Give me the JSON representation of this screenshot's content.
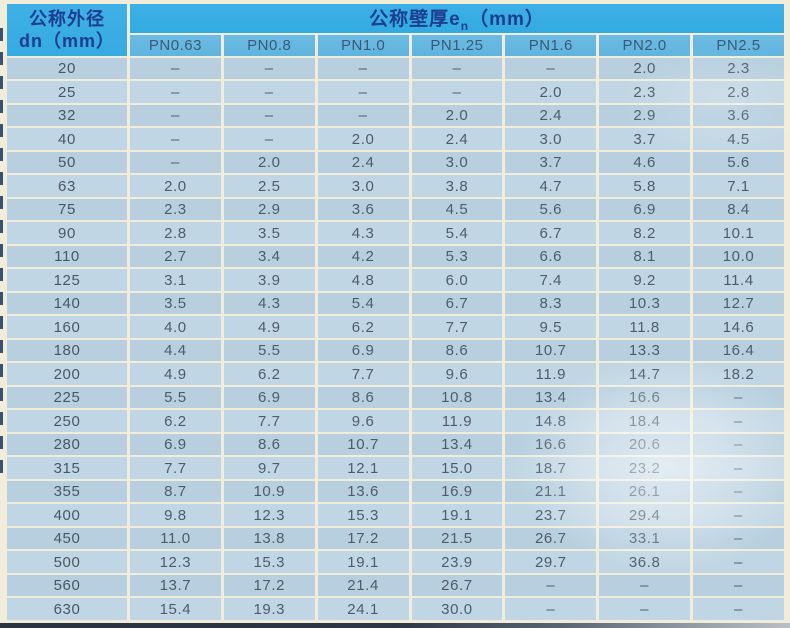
{
  "table": {
    "col1_header_line1": "公称外径",
    "col1_header_line2": "dn（mm）",
    "group_header_pre": "公称壁厚e",
    "group_header_sub": "n",
    "group_header_post": "（mm）",
    "pn_headers": [
      "PN0.63",
      "PN0.8",
      "PN1.0",
      "PN1.25",
      "PN1.6",
      "PN2.0",
      "PN2.5"
    ],
    "rows": [
      {
        "dn": "20",
        "values": [
          "–",
          "–",
          "–",
          "–",
          "–",
          "2.0",
          "2.3"
        ]
      },
      {
        "dn": "25",
        "values": [
          "–",
          "–",
          "–",
          "–",
          "2.0",
          "2.3",
          "2.8"
        ]
      },
      {
        "dn": "32",
        "values": [
          "–",
          "–",
          "–",
          "2.0",
          "2.4",
          "2.9",
          "3.6"
        ]
      },
      {
        "dn": "40",
        "values": [
          "–",
          "–",
          "2.0",
          "2.4",
          "3.0",
          "3.7",
          "4.5"
        ]
      },
      {
        "dn": "50",
        "values": [
          "–",
          "2.0",
          "2.4",
          "3.0",
          "3.7",
          "4.6",
          "5.6"
        ]
      },
      {
        "dn": "63",
        "values": [
          "2.0",
          "2.5",
          "3.0",
          "3.8",
          "4.7",
          "5.8",
          "7.1"
        ]
      },
      {
        "dn": "75",
        "values": [
          "2.3",
          "2.9",
          "3.6",
          "4.5",
          "5.6",
          "6.9",
          "8.4"
        ]
      },
      {
        "dn": "90",
        "values": [
          "2.8",
          "3.5",
          "4.3",
          "5.4",
          "6.7",
          "8.2",
          "10.1"
        ]
      },
      {
        "dn": "110",
        "values": [
          "2.7",
          "3.4",
          "4.2",
          "5.3",
          "6.6",
          "8.1",
          "10.0"
        ]
      },
      {
        "dn": "125",
        "values": [
          "3.1",
          "3.9",
          "4.8",
          "6.0",
          "7.4",
          "9.2",
          "11.4"
        ]
      },
      {
        "dn": "140",
        "values": [
          "3.5",
          "4.3",
          "5.4",
          "6.7",
          "8.3",
          "10.3",
          "12.7"
        ]
      },
      {
        "dn": "160",
        "values": [
          "4.0",
          "4.9",
          "6.2",
          "7.7",
          "9.5",
          "11.8",
          "14.6"
        ]
      },
      {
        "dn": "180",
        "values": [
          "4.4",
          "5.5",
          "6.9",
          "8.6",
          "10.7",
          "13.3",
          "16.4"
        ]
      },
      {
        "dn": "200",
        "values": [
          "4.9",
          "6.2",
          "7.7",
          "9.6",
          "11.9",
          "14.7",
          "18.2"
        ]
      },
      {
        "dn": "225",
        "values": [
          "5.5",
          "6.9",
          "8.6",
          "10.8",
          "13.4",
          "16.6",
          "–"
        ]
      },
      {
        "dn": "250",
        "values": [
          "6.2",
          "7.7",
          "9.6",
          "11.9",
          "14.8",
          "18.4",
          "–"
        ]
      },
      {
        "dn": "280",
        "values": [
          "6.9",
          "8.6",
          "10.7",
          "13.4",
          "16.6",
          "20.6",
          "–"
        ]
      },
      {
        "dn": "315",
        "values": [
          "7.7",
          "9.7",
          "12.1",
          "15.0",
          "18.7",
          "23.2",
          "–"
        ]
      },
      {
        "dn": "355",
        "values": [
          "8.7",
          "10.9",
          "13.6",
          "16.9",
          "21.1",
          "26.1",
          "–"
        ]
      },
      {
        "dn": "400",
        "values": [
          "9.8",
          "12.3",
          "15.3",
          "19.1",
          "23.7",
          "29.4",
          "–"
        ]
      },
      {
        "dn": "450",
        "values": [
          "11.0",
          "13.8",
          "17.2",
          "21.5",
          "26.7",
          "33.1",
          "–"
        ]
      },
      {
        "dn": "500",
        "values": [
          "12.3",
          "15.3",
          "19.1",
          "23.9",
          "29.7",
          "36.8",
          "–"
        ]
      },
      {
        "dn": "560",
        "values": [
          "13.7",
          "17.2",
          "21.4",
          "26.7",
          "–",
          "–",
          "–"
        ]
      },
      {
        "dn": "630",
        "values": [
          "15.4",
          "19.3",
          "24.1",
          "30.0",
          "–",
          "–",
          "–"
        ]
      }
    ]
  },
  "colors": {
    "header_bg": "#35abe2",
    "subheader_bg": "#62b6e0",
    "header_text": "#1c3d90",
    "pn_text": "#3c5878",
    "row_bg_a": "#b7cfdf",
    "row_bg_b": "#c1d6e4",
    "cell_text": "#4e5c6a",
    "page_margin": "#f1edda",
    "bottom_edge": "#2a3340"
  }
}
